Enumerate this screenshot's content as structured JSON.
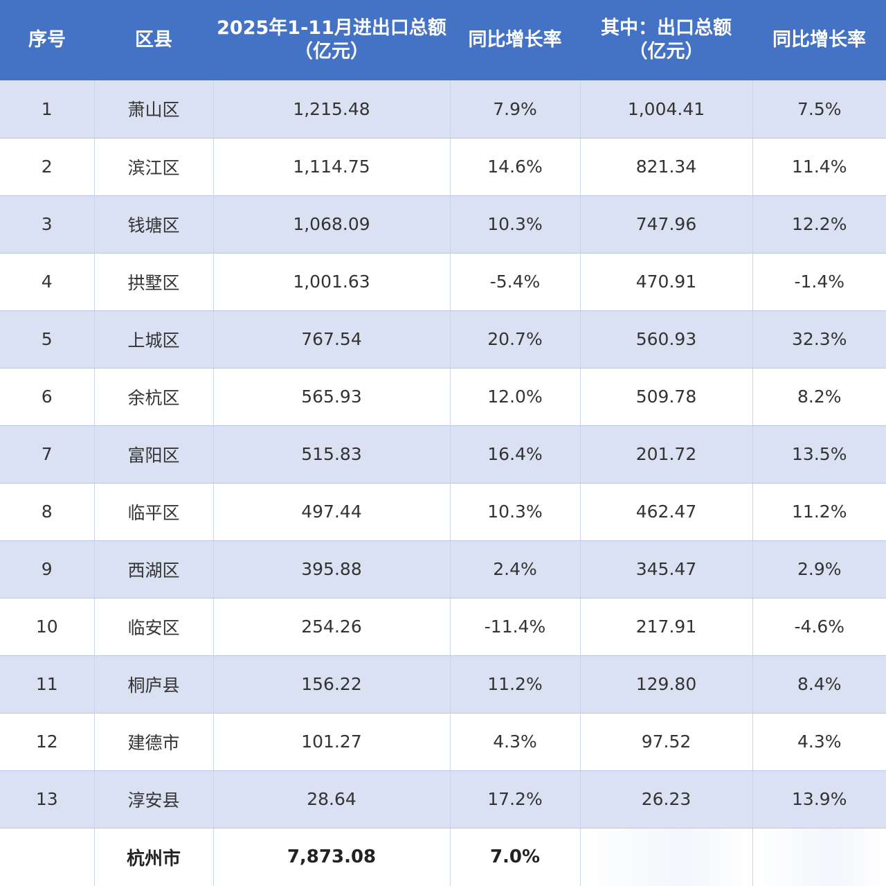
{
  "headers": [
    {
      "line1": "序号",
      "line2": ""
    },
    {
      "line1": "区县",
      "line2": ""
    },
    {
      "line1": "2025年1-11月进出口总额",
      "line2": "（亿元）"
    },
    {
      "line1": "同比增长率",
      "line2": ""
    },
    {
      "line1": "其中：出口总额",
      "line2": "（亿元）"
    },
    {
      "line1": "同比增长率",
      "line2": ""
    }
  ],
  "rows": [
    {
      "rank": "1",
      "district": "萧山区",
      "total": "1,215.48",
      "total_yoy": "7.9%",
      "export": "1,004.41",
      "export_yoy": "7.5%"
    },
    {
      "rank": "2",
      "district": "滨江区",
      "total": "1,114.75",
      "total_yoy": "14.6%",
      "export": "821.34",
      "export_yoy": "11.4%"
    },
    {
      "rank": "3",
      "district": "钱塘区",
      "total": "1,068.09",
      "total_yoy": "10.3%",
      "export": "747.96",
      "export_yoy": "12.2%"
    },
    {
      "rank": "4",
      "district": "拱墅区",
      "total": "1,001.63",
      "total_yoy": "-5.4%",
      "export": "470.91",
      "export_yoy": "-1.4%"
    },
    {
      "rank": "5",
      "district": "上城区",
      "total": "767.54",
      "total_yoy": "20.7%",
      "export": "560.93",
      "export_yoy": "32.3%"
    },
    {
      "rank": "6",
      "district": "余杭区",
      "total": "565.93",
      "total_yoy": "12.0%",
      "export": "509.78",
      "export_yoy": "8.2%"
    },
    {
      "rank": "7",
      "district": "富阳区",
      "total": "515.83",
      "total_yoy": "16.4%",
      "export": "201.72",
      "export_yoy": "13.5%"
    },
    {
      "rank": "8",
      "district": "临平区",
      "total": "497.44",
      "total_yoy": "10.3%",
      "export": "462.47",
      "export_yoy": "11.2%"
    },
    {
      "rank": "9",
      "district": "西湖区",
      "total": "395.88",
      "total_yoy": "2.4%",
      "export": "345.47",
      "export_yoy": "2.9%"
    },
    {
      "rank": "10",
      "district": "临安区",
      "total": "254.26",
      "total_yoy": "-11.4%",
      "export": "217.91",
      "export_yoy": "-4.6%"
    },
    {
      "rank": "11",
      "district": "桐庐县",
      "total": "156.22",
      "total_yoy": "11.2%",
      "export": "129.80",
      "export_yoy": "8.4%"
    },
    {
      "rank": "12",
      "district": "建德市",
      "total": "101.27",
      "total_yoy": "4.3%",
      "export": "97.52",
      "export_yoy": "4.3%"
    },
    {
      "rank": "13",
      "district": "淳安县",
      "total": "28.64",
      "total_yoy": "17.2%",
      "export": "26.23",
      "export_yoy": "13.9%"
    }
  ],
  "total_row": {
    "rank": "",
    "district": "杭州市",
    "total": "7,873.08",
    "total_yoy": "7.0%",
    "export": "",
    "export_yoy": ""
  },
  "colors": {
    "header_bg": "#4472c4",
    "header_text": "#ffffff",
    "band_row": "#d9e1f2",
    "plain_row": "#ffffff"
  }
}
